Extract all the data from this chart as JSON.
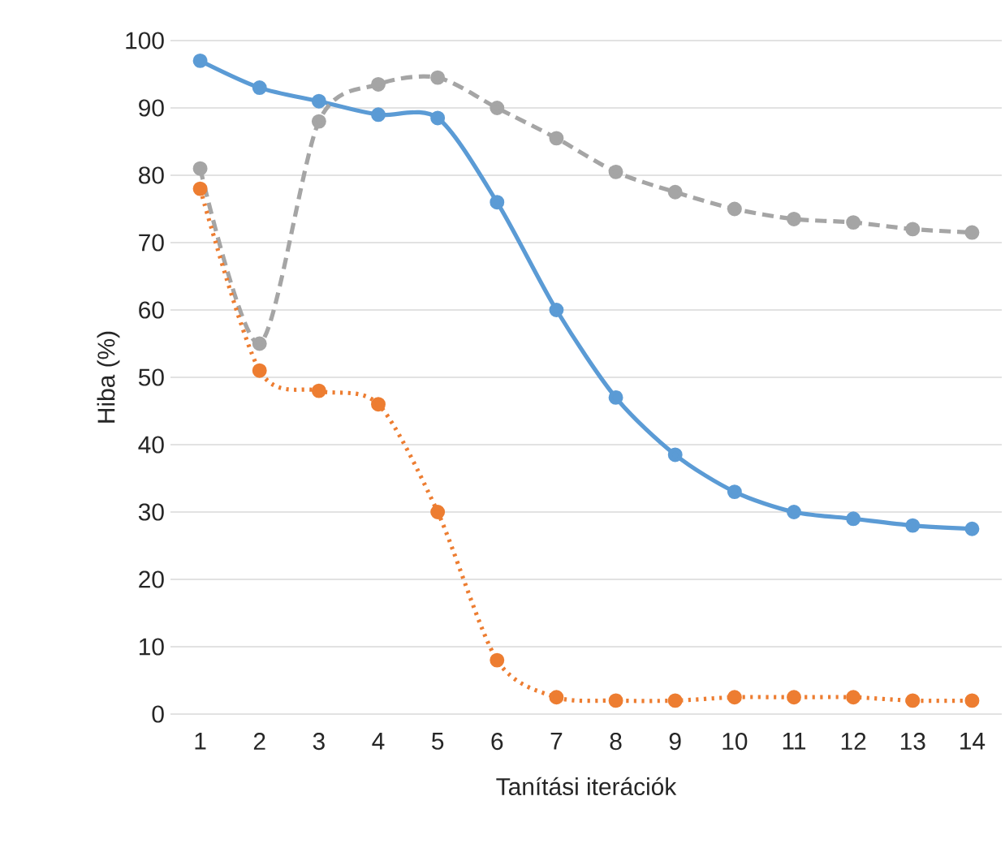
{
  "chart_data": {
    "type": "line",
    "xlabel": "Tanítási iterációk",
    "ylabel": "Hiba (%)",
    "categories": [
      "1",
      "2",
      "3",
      "4",
      "5",
      "6",
      "7",
      "8",
      "9",
      "10",
      "11",
      "12",
      "13",
      "14"
    ],
    "series": [
      {
        "color": "#5b9bd5",
        "line_style": "solid",
        "values": [
          97,
          93,
          91,
          89,
          88.5,
          76,
          60,
          47,
          38.5,
          33,
          30,
          29,
          28,
          27.5
        ]
      },
      {
        "color": "#a5a5a5",
        "line_style": "dashed",
        "values": [
          81,
          55,
          88,
          93.5,
          94.5,
          90,
          85.5,
          80.5,
          77.5,
          75,
          73.5,
          73,
          72,
          71.5
        ]
      },
      {
        "color": "#ed7d31",
        "line_style": "dotted",
        "values": [
          78,
          51,
          48,
          46,
          30,
          8,
          2.5,
          2,
          2,
          2.5,
          2.5,
          2.5,
          2,
          2
        ]
      }
    ],
    "ylim": [
      0,
      100
    ],
    "yticks": [
      0,
      10,
      20,
      30,
      40,
      50,
      60,
      70,
      80,
      90,
      100
    ],
    "grid": "y",
    "marker": "circle"
  }
}
